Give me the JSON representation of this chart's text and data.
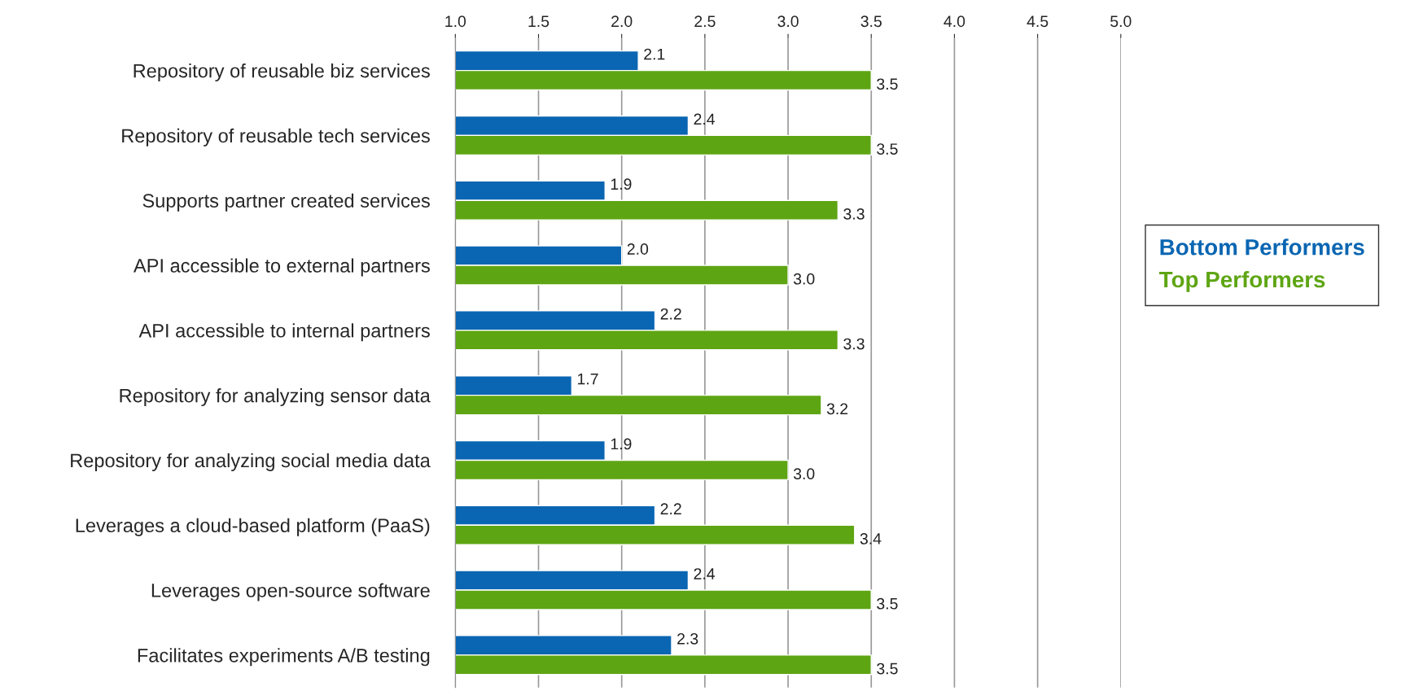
{
  "chart_data": {
    "type": "bar",
    "orientation": "horizontal",
    "categories": [
      "Repository of reusable biz services",
      "Repository of reusable tech services",
      "Supports partner created services",
      "API accessible to external partners",
      "API accessible to internal partners",
      "Repository for analyzing sensor data",
      "Repository for analyzing social media data",
      "Leverages a cloud-based platform (PaaS)",
      "Leverages open-source software",
      "Facilitates experiments A/B testing"
    ],
    "series": [
      {
        "name": "Bottom Performers",
        "color": "#0a66b2",
        "values": [
          2.1,
          2.4,
          1.9,
          2.0,
          2.2,
          1.7,
          1.9,
          2.2,
          2.4,
          2.3
        ],
        "value_labels": [
          "2.1",
          "2.4",
          "1.9",
          "2.0",
          "2.2",
          "1.7",
          "1.9",
          "2.2",
          "2.4",
          "2.3"
        ]
      },
      {
        "name": "Top Performers",
        "color": "#5ea513",
        "values": [
          3.5,
          3.5,
          3.3,
          3.0,
          3.3,
          3.2,
          3.0,
          3.4,
          3.5,
          3.5
        ],
        "value_labels": [
          "3.5",
          "3.5",
          "3.3",
          "3.0",
          "3.3",
          "3.2",
          "3.0",
          "3.4",
          "3.5",
          "3.5"
        ]
      }
    ],
    "xlim": [
      1.0,
      5.0
    ],
    "xticks": [
      {
        "value": 1.0,
        "label": "1.0"
      },
      {
        "value": 1.5,
        "label": "1.5"
      },
      {
        "value": 2.0,
        "label": "2.0"
      },
      {
        "value": 2.5,
        "label": "2.5"
      },
      {
        "value": 3.0,
        "label": "3.0"
      },
      {
        "value": 3.5,
        "label": "3.5"
      },
      {
        "value": 4.0,
        "label": "4.0"
      },
      {
        "value": 4.5,
        "label": "4.5"
      },
      {
        "value": 5.0,
        "label": "5.0"
      }
    ],
    "grid": "x",
    "legend": "right"
  }
}
